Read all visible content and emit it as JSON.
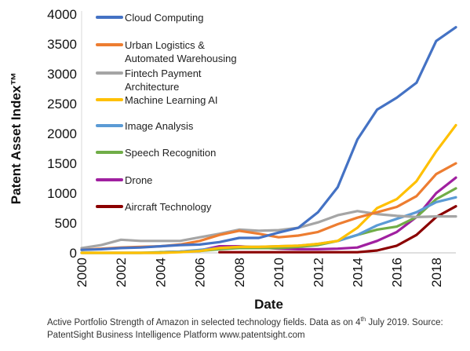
{
  "chart_data": {
    "type": "line",
    "xlabel": "Date",
    "ylabel": "Patent Asset Index™",
    "xlim": [
      2000,
      2019
    ],
    "ylim": [
      0,
      4000
    ],
    "x_ticks": [
      2000,
      2002,
      2004,
      2006,
      2008,
      2010,
      2012,
      2014,
      2016,
      2018
    ],
    "y_ticks": [
      0,
      500,
      1000,
      1500,
      2000,
      2500,
      3000,
      3500,
      4000
    ],
    "x_tick_labels": [
      "2000",
      "2002",
      "2004",
      "2006",
      "2008",
      "2010",
      "2012",
      "2014",
      "2016",
      "2018"
    ],
    "y_tick_labels": [
      "0",
      "500",
      "1000",
      "1500",
      "2000",
      "2500",
      "3000",
      "3500",
      "4000"
    ],
    "legend_position": "top-left",
    "series": [
      {
        "name": "Cloud Computing",
        "color": "#4472C4",
        "x": [
          2000,
          2001,
          2002,
          2003,
          2004,
          2005,
          2006,
          2007,
          2008,
          2009,
          2010,
          2011,
          2012,
          2013,
          2014,
          2015,
          2016,
          2017,
          2018,
          2019
        ],
        "y": [
          50,
          60,
          80,
          90,
          110,
          130,
          140,
          180,
          250,
          250,
          340,
          420,
          680,
          1100,
          1900,
          2400,
          2600,
          2850,
          3550,
          3780
        ]
      },
      {
        "name": "Urban Logistics & Automated Warehousing",
        "color": "#ED7D31",
        "x": [
          2000,
          2001,
          2002,
          2003,
          2004,
          2005,
          2006,
          2007,
          2008,
          2009,
          2010,
          2011,
          2012,
          2013,
          2014,
          2015,
          2016,
          2017,
          2018,
          2019
        ],
        "y": [
          50,
          70,
          90,
          100,
          110,
          140,
          200,
          300,
          370,
          320,
          260,
          290,
          350,
          480,
          590,
          680,
          770,
          950,
          1320,
          1500
        ]
      },
      {
        "name": "Fintech Payment Architecture",
        "color": "#A5A5A5",
        "x": [
          2000,
          2001,
          2002,
          2003,
          2004,
          2005,
          2006,
          2007,
          2008,
          2009,
          2010,
          2011,
          2012,
          2013,
          2014,
          2015,
          2016,
          2017,
          2018,
          2019
        ],
        "y": [
          80,
          130,
          220,
          200,
          200,
          200,
          260,
          320,
          390,
          370,
          380,
          420,
          510,
          630,
          700,
          650,
          620,
          600,
          610,
          610
        ]
      },
      {
        "name": "Machine Learning AI",
        "color": "#FFC000",
        "x": [
          2000,
          2001,
          2002,
          2003,
          2004,
          2005,
          2006,
          2007,
          2008,
          2009,
          2010,
          2011,
          2012,
          2013,
          2014,
          2015,
          2016,
          2017,
          2018,
          2019
        ],
        "y": [
          0,
          0,
          0,
          0,
          0,
          10,
          30,
          80,
          100,
          100,
          110,
          120,
          150,
          200,
          420,
          750,
          900,
          1200,
          1700,
          2140
        ]
      },
      {
        "name": "Image Analysis",
        "color": "#5B9BD5",
        "x": [
          2000,
          2001,
          2002,
          2003,
          2004,
          2005,
          2006,
          2007,
          2008,
          2009,
          2010,
          2011,
          2012,
          2013,
          2014,
          2015,
          2016,
          2017,
          2018,
          2019
        ],
        "y": [
          0,
          0,
          0,
          0,
          0,
          20,
          50,
          80,
          100,
          100,
          110,
          120,
          150,
          200,
          300,
          460,
          570,
          680,
          850,
          930
        ]
      },
      {
        "name": "Speech Recognition",
        "color": "#70AD47",
        "x": [
          2000,
          2001,
          2002,
          2003,
          2004,
          2005,
          2006,
          2007,
          2008,
          2009,
          2010,
          2011,
          2012,
          2013,
          2014,
          2015,
          2016,
          2017,
          2018,
          2019
        ],
        "y": [
          0,
          0,
          0,
          0,
          10,
          20,
          30,
          60,
          80,
          80,
          80,
          100,
          130,
          200,
          300,
          390,
          440,
          600,
          900,
          1080
        ]
      },
      {
        "name": "Drone",
        "color": "#A020A0",
        "x": [
          2004,
          2005,
          2006,
          2007,
          2008,
          2009,
          2010,
          2011,
          2012,
          2013,
          2014,
          2015,
          2016,
          2017,
          2018,
          2019
        ],
        "y": [
          10,
          20,
          40,
          110,
          110,
          90,
          70,
          60,
          60,
          70,
          90,
          200,
          350,
          600,
          1000,
          1260
        ]
      },
      {
        "name": "Aircraft Technology",
        "color": "#8B0000",
        "x": [
          2007,
          2008,
          2009,
          2010,
          2011,
          2012,
          2013,
          2014,
          2015,
          2016,
          2017,
          2018,
          2019
        ],
        "y": [
          10,
          10,
          10,
          10,
          10,
          10,
          10,
          10,
          40,
          120,
          300,
          600,
          780
        ]
      }
    ],
    "legend_lines": [
      [
        "Cloud Computing"
      ],
      [
        "Urban Logistics &",
        "Automated Warehousing"
      ],
      [
        "Fintech Payment",
        "Architecture"
      ],
      [
        "Machine Learning AI"
      ],
      [
        "Image Analysis"
      ],
      [
        "Speech Recognition"
      ],
      [
        "Drone"
      ],
      [
        "Aircraft Technology"
      ]
    ]
  },
  "caption": {
    "part1": "Active Portfolio Strength of Amazon in selected technology fields. Data as on 4",
    "sup": "th",
    "part2": " July 2019. Source: PatentSight Business Intelligence Platform www.patentsight.com"
  }
}
